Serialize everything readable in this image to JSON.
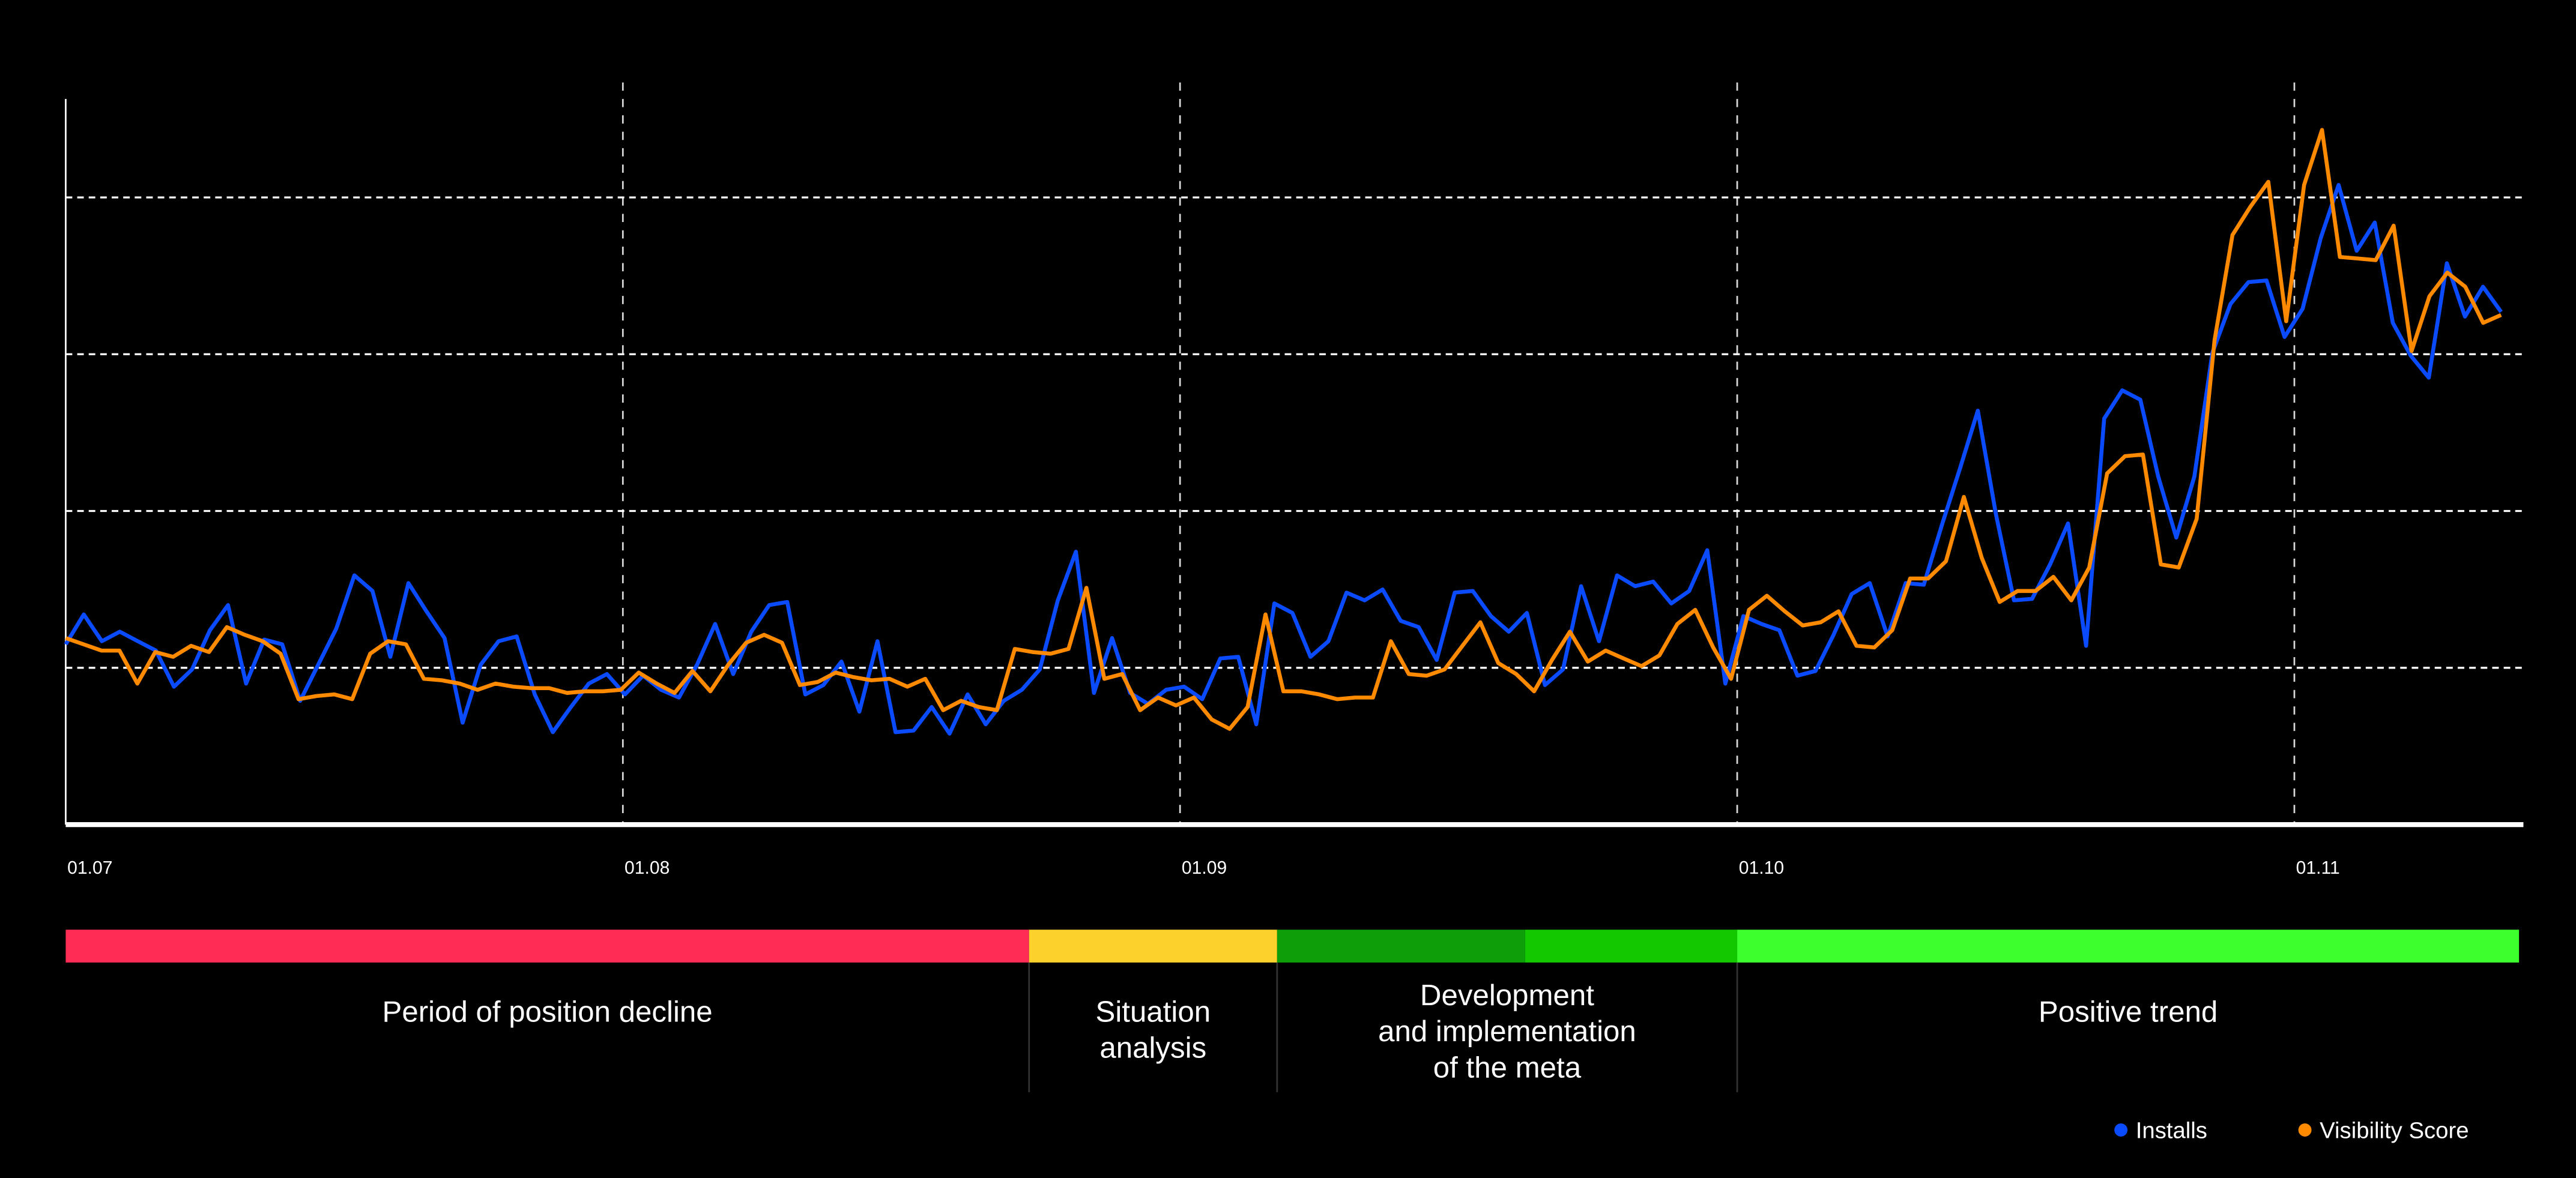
{
  "chart_data": {
    "type": "line",
    "title": "",
    "xlabel": "",
    "ylabel": "",
    "x_unit": "days since 01.07",
    "xlim": [
      0,
      136.5
    ],
    "ylim": [
      0,
      4.63
    ],
    "grid": {
      "horizontal": [
        1,
        2,
        3,
        4
      ],
      "vertical_at_ticks": true,
      "style": "dashed"
    },
    "x_ticks": [
      {
        "label": "01.07",
        "day": 0
      },
      {
        "label": "01.08",
        "day": 31
      },
      {
        "label": "01.09",
        "day": 62
      },
      {
        "label": "01.10",
        "day": 93
      },
      {
        "label": "01.11",
        "day": 124
      }
    ],
    "x_span_days": [
      0,
      135.5
    ],
    "series": [
      {
        "name": "Installs",
        "color": "#0A4BFF",
        "values": [
          1.15,
          1.34,
          1.17,
          1.23,
          1.17,
          1.11,
          0.88,
          0.99,
          1.24,
          1.4,
          0.9,
          1.18,
          1.15,
          0.79,
          1.02,
          1.25,
          1.59,
          1.49,
          1.07,
          1.54,
          1.36,
          1.19,
          0.65,
          1.02,
          1.17,
          1.2,
          0.83,
          0.59,
          0.75,
          0.9,
          0.96,
          0.83,
          0.95,
          0.86,
          0.81,
          1.02,
          1.28,
          0.96,
          1.23,
          1.4,
          1.42,
          0.83,
          0.89,
          1.04,
          0.72,
          1.17,
          0.59,
          0.6,
          0.75,
          0.58,
          0.83,
          0.64,
          0.79,
          0.86,
          0.99,
          1.43,
          1.74,
          0.84,
          1.19,
          0.84,
          0.77,
          0.86,
          0.88,
          0.8,
          1.06,
          1.07,
          0.64,
          1.41,
          1.35,
          1.07,
          1.17,
          1.48,
          1.43,
          1.5,
          1.3,
          1.26,
          1.05,
          1.48,
          1.49,
          1.33,
          1.23,
          1.35,
          0.89,
          0.99,
          1.52,
          1.17,
          1.59,
          1.52,
          1.55,
          1.41,
          1.49,
          1.75,
          0.9,
          1.33,
          1.28,
          1.24,
          0.95,
          0.98,
          1.21,
          1.47,
          1.54,
          1.2,
          1.54,
          1.53,
          1.91,
          2.27,
          2.64,
          1.98,
          1.43,
          1.44,
          1.66,
          1.92,
          1.14,
          2.59,
          2.77,
          2.71,
          2.22,
          1.83,
          2.22,
          3.01,
          3.32,
          3.46,
          3.47,
          3.11,
          3.29,
          3.74,
          4.08,
          3.66,
          3.84,
          3.2,
          2.99,
          2.85,
          3.58,
          3.24,
          3.43,
          3.27
        ]
      },
      {
        "name": "Visibility Score",
        "color": "#FF8A00",
        "values": [
          1.19,
          1.15,
          1.11,
          1.11,
          0.9,
          1.1,
          1.07,
          1.14,
          1.1,
          1.26,
          1.21,
          1.17,
          1.09,
          0.8,
          0.82,
          0.83,
          0.8,
          1.09,
          1.17,
          1.15,
          0.93,
          0.92,
          0.9,
          0.86,
          0.9,
          0.88,
          0.87,
          0.87,
          0.84,
          0.85,
          0.85,
          0.86,
          0.97,
          0.9,
          0.84,
          0.98,
          0.85,
          1.02,
          1.16,
          1.21,
          1.16,
          0.89,
          0.91,
          0.97,
          0.94,
          0.92,
          0.93,
          0.88,
          0.93,
          0.73,
          0.79,
          0.75,
          0.73,
          1.12,
          1.1,
          1.09,
          1.12,
          1.51,
          0.93,
          0.96,
          0.73,
          0.81,
          0.76,
          0.81,
          0.67,
          0.61,
          0.75,
          1.34,
          0.85,
          0.85,
          0.83,
          0.8,
          0.81,
          0.81,
          1.17,
          0.96,
          0.95,
          0.99,
          1.14,
          1.29,
          1.03,
          0.96,
          0.85,
          1.05,
          1.23,
          1.04,
          1.11,
          1.06,
          1.01,
          1.08,
          1.28,
          1.37,
          1.13,
          0.93,
          1.37,
          1.46,
          1.36,
          1.27,
          1.29,
          1.36,
          1.14,
          1.13,
          1.24,
          1.57,
          1.57,
          1.68,
          2.09,
          1.7,
          1.42,
          1.49,
          1.49,
          1.58,
          1.43,
          1.64,
          2.24,
          2.35,
          2.36,
          1.66,
          1.64,
          1.95,
          3.09,
          3.76,
          3.94,
          4.1,
          3.21,
          4.08,
          4.43,
          3.62,
          3.61,
          3.6,
          3.82,
          3.02,
          3.37,
          3.52,
          3.43,
          3.2,
          3.25
        ]
      }
    ],
    "phases": [
      {
        "label": "Period of position decline",
        "start_day": 0,
        "end_day": 53.6,
        "segments": [
          {
            "end_day": 53.6,
            "color": "#FF2D55"
          }
        ]
      },
      {
        "label": "Situation analysis",
        "start_day": 53.6,
        "end_day": 67.4,
        "segments": [
          {
            "end_day": 67.4,
            "color": "#FDD12B"
          }
        ]
      },
      {
        "label": "Development and implementation of the meta",
        "start_day": 67.4,
        "end_day": 93,
        "segments": [
          {
            "end_day": 81.2,
            "color": "#0E9E0A"
          },
          {
            "end_day": 93,
            "color": "#14C800"
          }
        ]
      },
      {
        "label": "Positive trend",
        "start_day": 93,
        "end_day": 136.5,
        "segments": [
          {
            "end_day": 136.5,
            "color": "#3EFF2E"
          }
        ]
      }
    ],
    "phase_label_lines": [
      [
        "Period of position decline"
      ],
      [
        "Situation",
        "analysis"
      ],
      [
        "Development",
        "and implementation",
        "of the meta"
      ],
      [
        "Positive trend"
      ]
    ],
    "legend": {
      "placement": "bottom-right",
      "items": [
        "Installs",
        "Visibility Score"
      ]
    }
  }
}
